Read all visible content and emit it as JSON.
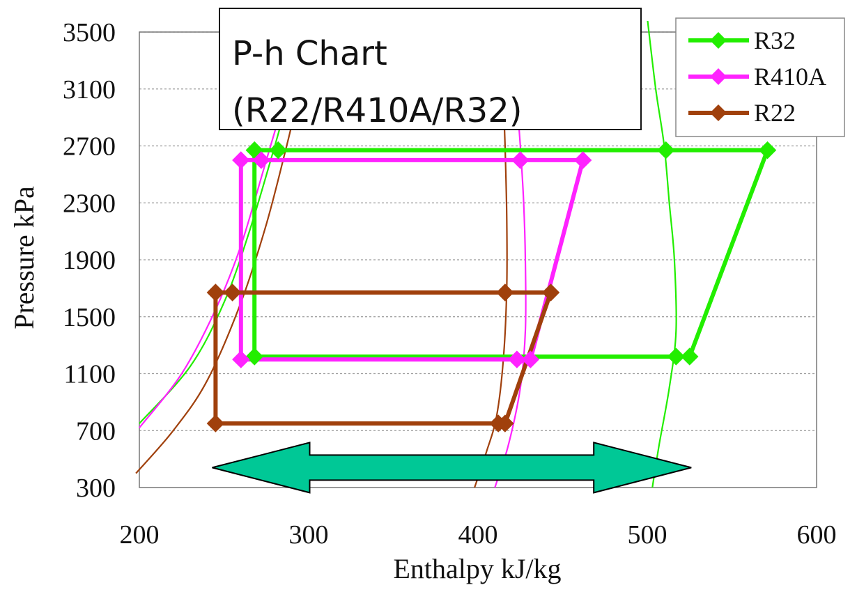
{
  "chart_data": {
    "type": "line",
    "title_lines": [
      "P-h Chart",
      "(R22/R410A/R32)"
    ],
    "xlabel": "Enthalpy  kJ/kg",
    "ylabel": "Pressure  kPa",
    "xlim": [
      200,
      600
    ],
    "ylim": [
      300,
      3500
    ],
    "xticks": [
      "200",
      "300",
      "400",
      "500",
      "600"
    ],
    "yticks": [
      "300",
      "700",
      "1100",
      "1500",
      "1900",
      "2300",
      "2700",
      "3100",
      "3500"
    ],
    "grid": "horizontal-dashed",
    "legend_position": "top-right",
    "series": [
      {
        "name": "R32",
        "color": "#22ee00",
        "points": [
          [
            268,
            2670
          ],
          [
            282,
            2670
          ],
          [
            511,
            2670
          ],
          [
            571,
            2670
          ],
          [
            525,
            1220
          ],
          [
            517,
            1220
          ],
          [
            268,
            1220
          ],
          [
            268,
            2670
          ]
        ],
        "sat_liquid": [
          [
            200,
            750
          ],
          [
            230,
            1150
          ],
          [
            250,
            1600
          ],
          [
            265,
            2100
          ],
          [
            280,
            2700
          ],
          [
            287,
            3000
          ]
        ],
        "sat_vapor": [
          [
            503,
            300
          ],
          [
            507,
            600
          ],
          [
            513,
            1000
          ],
          [
            517,
            1400
          ],
          [
            516,
            1900
          ],
          [
            513,
            2300
          ],
          [
            510,
            2700
          ],
          [
            505,
            3100
          ],
          [
            500,
            3600
          ]
        ]
      },
      {
        "name": "R410A",
        "color": "#ff22ff",
        "points": [
          [
            260,
            2600
          ],
          [
            272,
            2600
          ],
          [
            425,
            2600
          ],
          [
            462,
            2600
          ],
          [
            431,
            1200
          ],
          [
            423,
            1200
          ],
          [
            260,
            1200
          ],
          [
            260,
            2600
          ]
        ],
        "sat_liquid": [
          [
            200,
            720
          ],
          [
            225,
            1100
          ],
          [
            245,
            1550
          ],
          [
            260,
            2000
          ],
          [
            275,
            2600
          ],
          [
            285,
            3000
          ]
        ],
        "sat_vapor": [
          [
            410,
            300
          ],
          [
            418,
            600
          ],
          [
            425,
            1000
          ],
          [
            428,
            1400
          ],
          [
            428,
            1900
          ],
          [
            427,
            2300
          ],
          [
            425,
            2700
          ],
          [
            423,
            3000
          ],
          [
            420,
            3300
          ]
        ]
      },
      {
        "name": "R22",
        "color": "#a0400c",
        "points": [
          [
            245,
            750
          ],
          [
            245,
            1670
          ],
          [
            255,
            1670
          ],
          [
            416,
            1670
          ],
          [
            443,
            1670
          ],
          [
            416,
            750
          ],
          [
            412,
            750
          ],
          [
            245,
            750
          ]
        ],
        "sat_liquid": [
          [
            198,
            400
          ],
          [
            220,
            700
          ],
          [
            240,
            1050
          ],
          [
            260,
            1600
          ],
          [
            275,
            2150
          ],
          [
            287,
            2700
          ],
          [
            293,
            3000
          ]
        ],
        "sat_vapor": [
          [
            398,
            300
          ],
          [
            405,
            550
          ],
          [
            411,
            800
          ],
          [
            415,
            1200
          ],
          [
            417,
            1700
          ],
          [
            417,
            2200
          ],
          [
            416,
            2700
          ],
          [
            415,
            3000
          ]
        ]
      }
    ],
    "annotation": {
      "type": "double-arrow",
      "color": "#00c896",
      "x_from": 243,
      "x_to": 526,
      "y": 440
    }
  }
}
